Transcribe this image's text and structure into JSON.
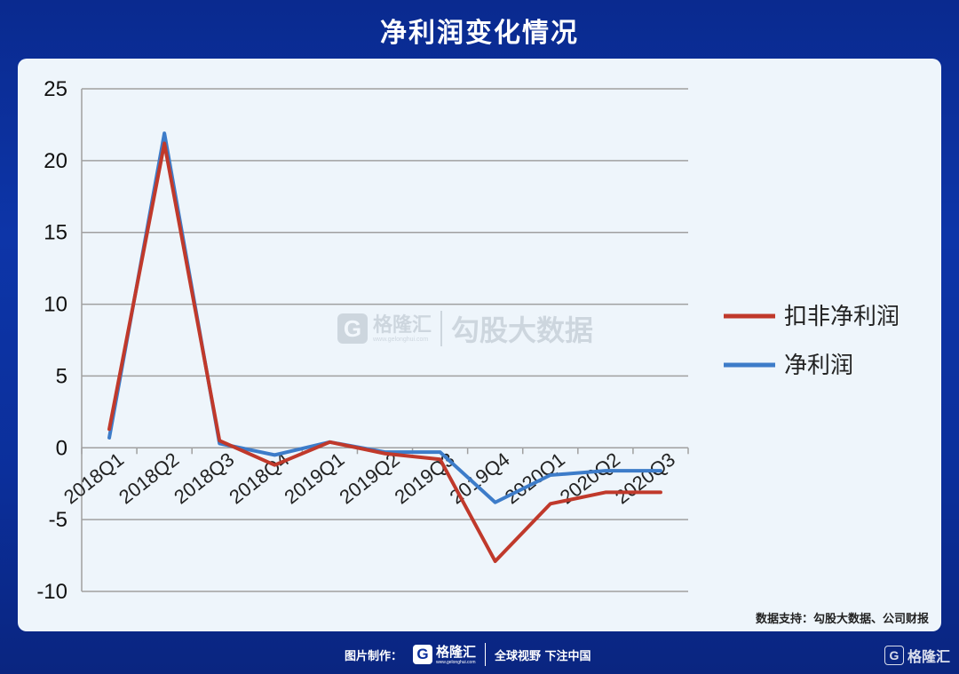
{
  "title": "净利润变化情况",
  "watermark": {
    "logo_letter": "G",
    "brand": "格隆汇",
    "url": "www.gelonghui.com",
    "sub": "勾股大数据"
  },
  "source_note": "数据支持：勾股大数据、公司财报",
  "footer": {
    "made_by": "图片制作：",
    "logo_letter": "G",
    "brand": "格隆汇",
    "url": "www.gelonghui.com",
    "slogan": "全球视野 下注中国",
    "corner_brand": "格隆汇"
  },
  "colors": {
    "background": "#0b2f9b",
    "panel": "#eef5fb",
    "series_kf": "#c0392b",
    "series_net": "#3d7cc9",
    "grid": "#a0a0a0"
  },
  "chart_data": {
    "type": "line",
    "title": "",
    "xlabel": "",
    "ylabel": "",
    "categories": [
      "2018Q1",
      "2018Q2",
      "2018Q3",
      "2018Q4",
      "2019Q1",
      "2019Q2",
      "2019Q3",
      "2019Q4",
      "2020Q1",
      "2020Q2",
      "2020Q3"
    ],
    "ylim": [
      -10,
      25
    ],
    "yticks": [
      25,
      20,
      15,
      10,
      5,
      0,
      -5,
      -10
    ],
    "grid": true,
    "legend_position": "right",
    "series": [
      {
        "name": "扣非净利润",
        "color": "#c0392b",
        "values": [
          1.3,
          21.2,
          0.5,
          -1.2,
          0.4,
          -0.4,
          -0.8,
          -7.9,
          -3.9,
          -3.1,
          -3.1
        ]
      },
      {
        "name": "净利润",
        "color": "#3d7cc9",
        "values": [
          0.7,
          21.9,
          0.3,
          -0.5,
          0.4,
          -0.3,
          -0.3,
          -3.8,
          -1.9,
          -1.6,
          -1.6
        ]
      }
    ]
  }
}
